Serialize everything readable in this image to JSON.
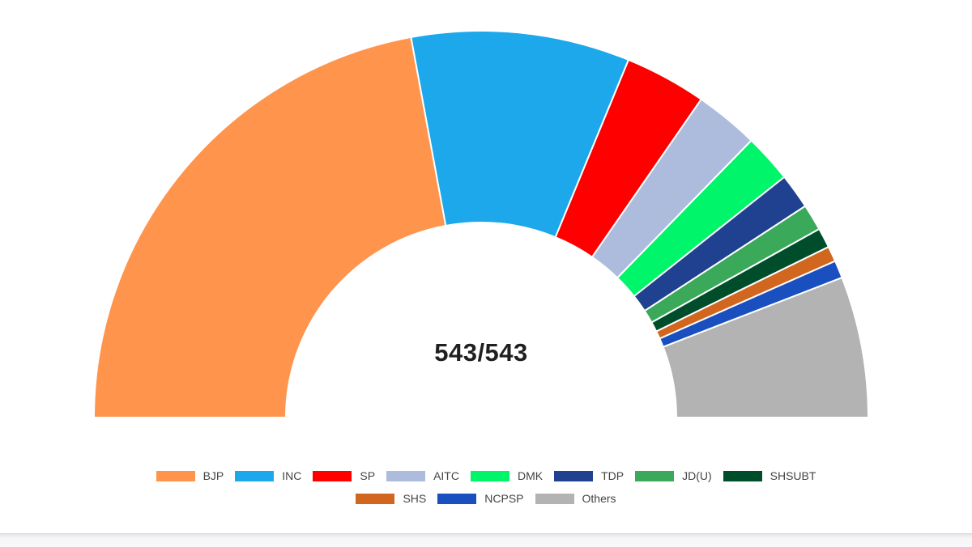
{
  "center_label": "543/543",
  "chart_data": {
    "type": "pie",
    "subtype": "half-donut (parliament seat chart)",
    "title": "",
    "total_seats": 543,
    "declared_seats": 543,
    "categories": [
      "BJP",
      "INC",
      "SP",
      "AITC",
      "DMK",
      "TDP",
      "JD(U)",
      "SHSUBT",
      "SHS",
      "NCPSP",
      "Others"
    ],
    "values": [
      240,
      99,
      37,
      29,
      22,
      16,
      12,
      9,
      7,
      8,
      64
    ],
    "colors": [
      "#FF944D",
      "#1CA8EA",
      "#FF0000",
      "#ADBCDD",
      "#00F56A",
      "#20418F",
      "#3AA95A",
      "#004D2C",
      "#D1661F",
      "#1A4FBF",
      "#B3B3B3"
    ],
    "legend_position": "bottom"
  },
  "legend": {
    "row1": [
      {
        "label": "BJP",
        "color": "#FF944D"
      },
      {
        "label": "INC",
        "color": "#1CA8EA"
      },
      {
        "label": "SP",
        "color": "#FF0000"
      },
      {
        "label": "AITC",
        "color": "#ADBCDD"
      },
      {
        "label": "DMK",
        "color": "#00F56A"
      },
      {
        "label": "TDP",
        "color": "#20418F"
      },
      {
        "label": "JD(U)",
        "color": "#3AA95A"
      },
      {
        "label": "SHSUBT",
        "color": "#004D2C"
      }
    ],
    "row2": [
      {
        "label": "SHS",
        "color": "#D1661F"
      },
      {
        "label": "NCPSP",
        "color": "#1A4FBF"
      },
      {
        "label": "Others",
        "color": "#B3B3B3"
      }
    ]
  }
}
